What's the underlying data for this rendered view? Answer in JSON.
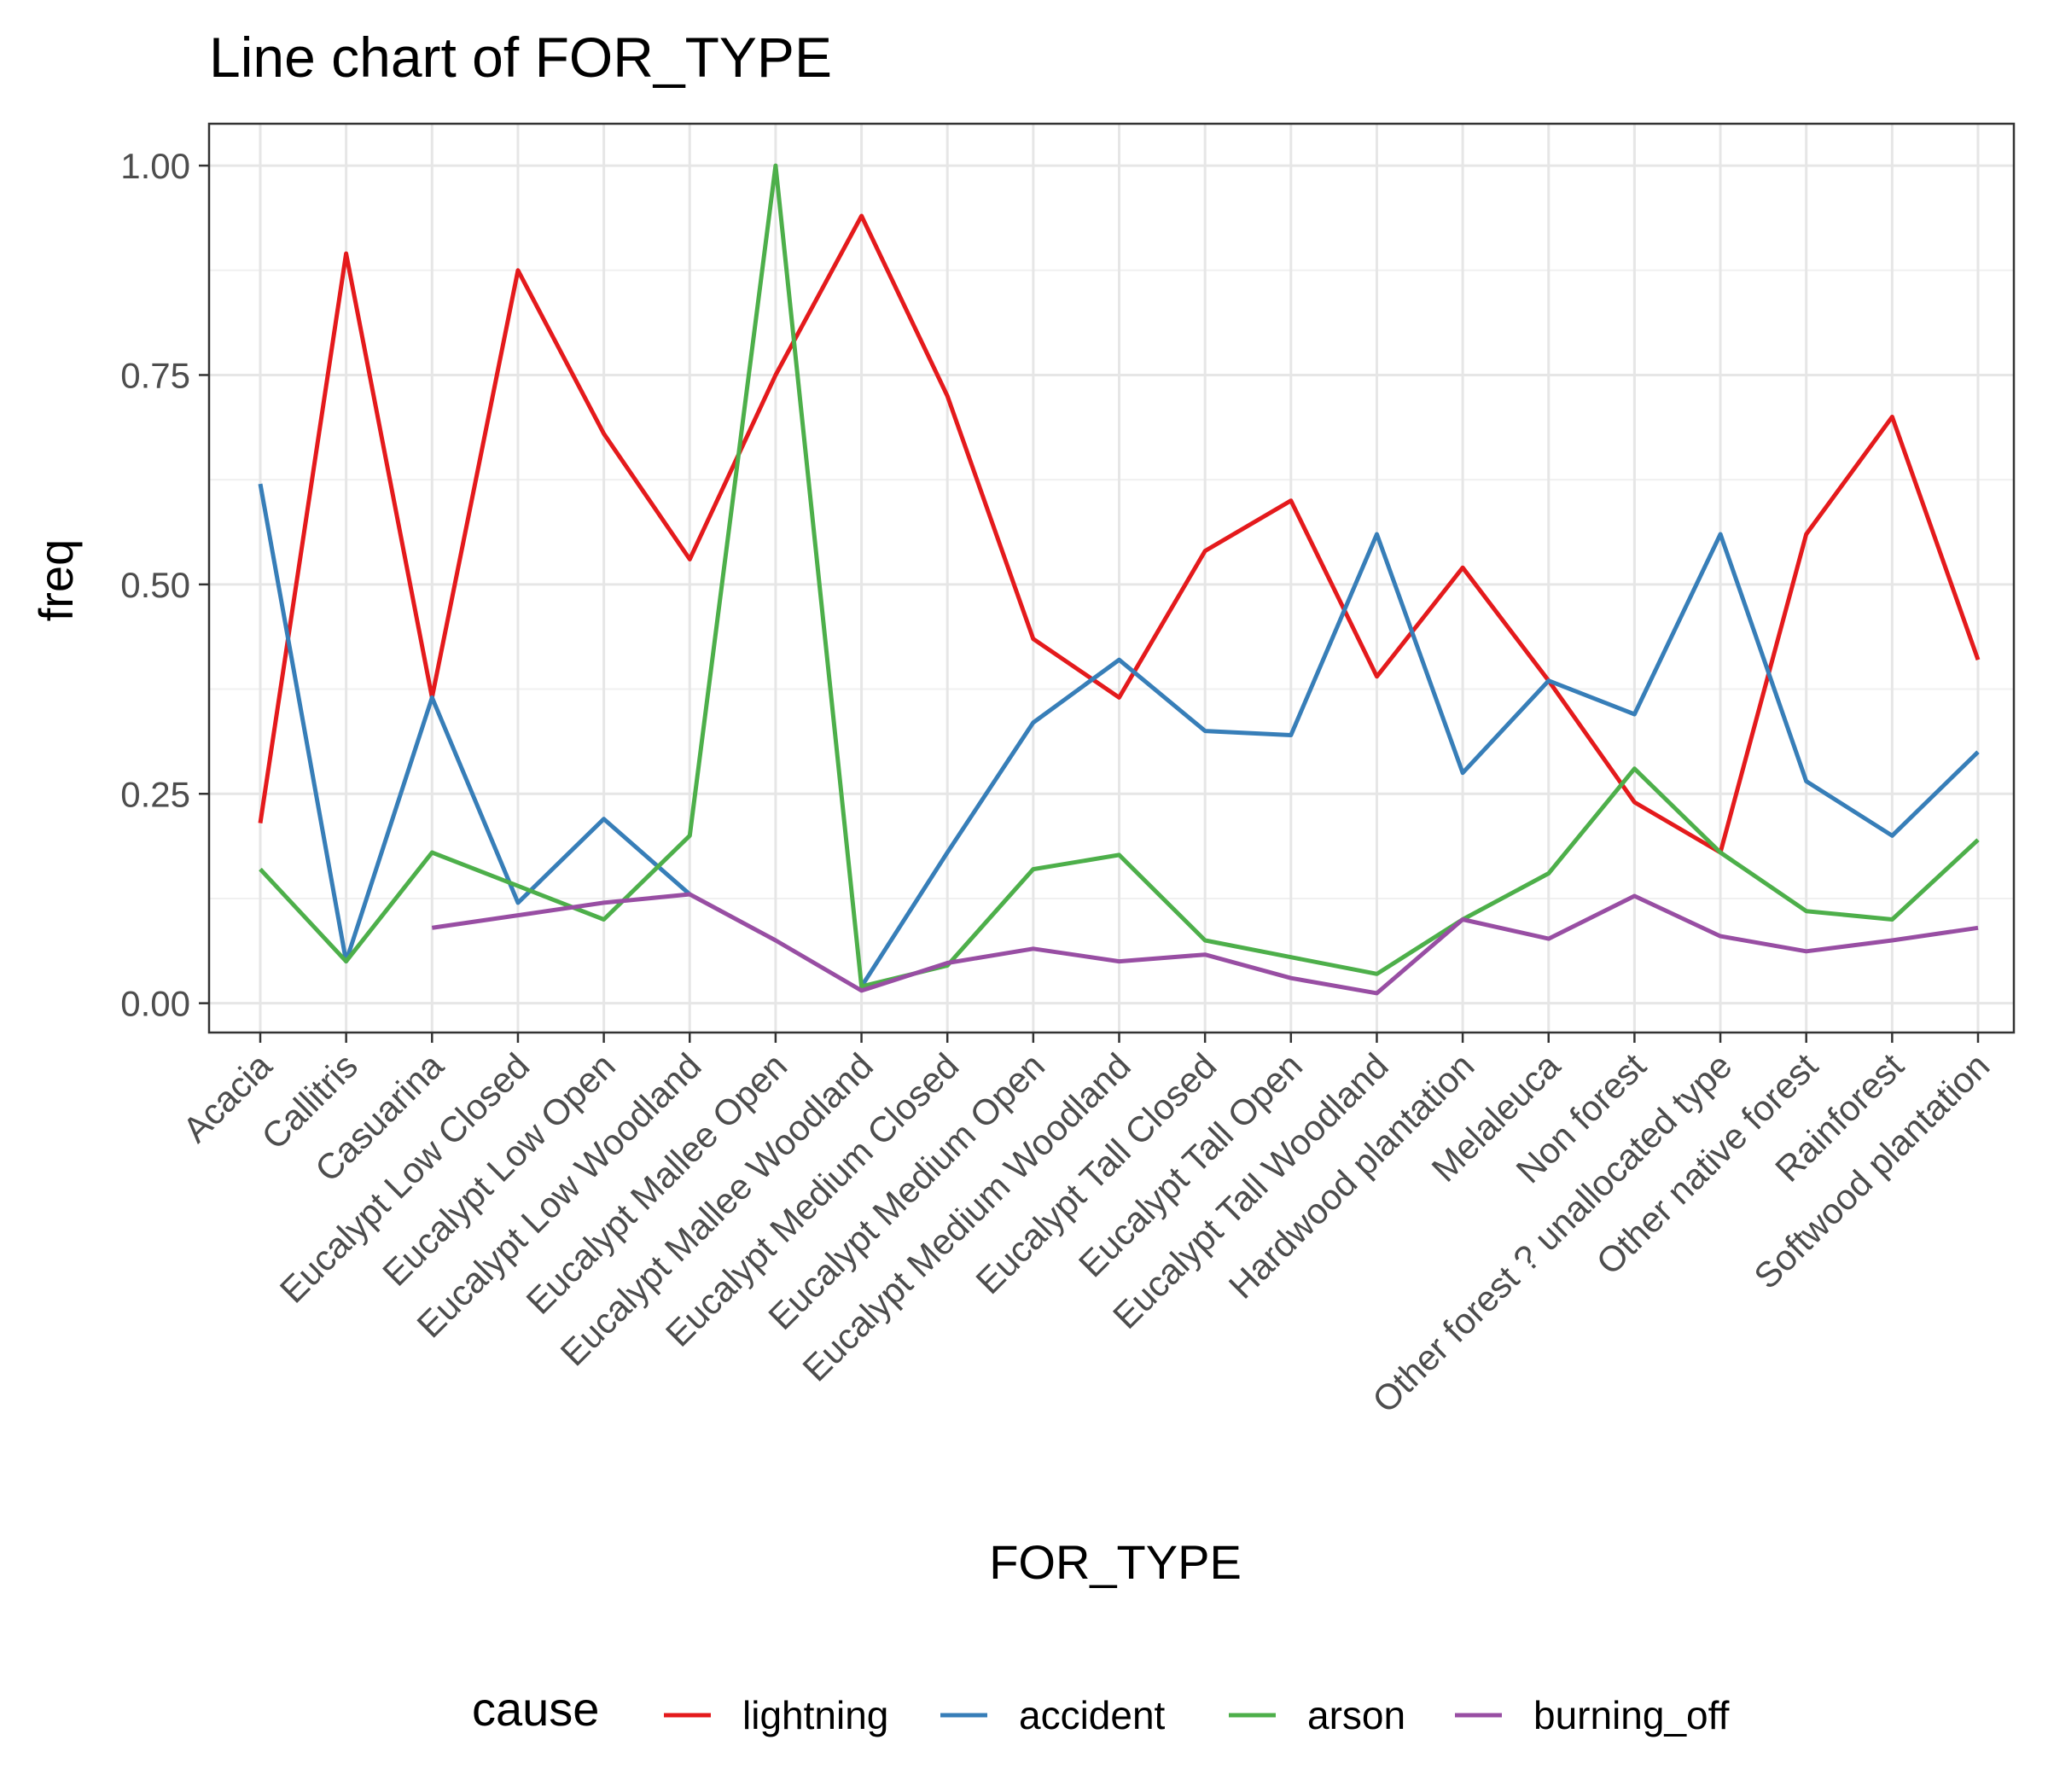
{
  "chart_data": {
    "type": "line",
    "title": "Line chart of FOR_TYPE",
    "xlabel": "FOR_TYPE",
    "ylabel": "freq",
    "ylim": [
      -0.035,
      1.05
    ],
    "yticks": [
      0,
      0.25,
      0.5,
      0.75,
      1
    ],
    "ytick_labels": [
      "0.00",
      "0.25",
      "0.50",
      "0.75",
      "1.00"
    ],
    "grid": true,
    "legend_title": "cause",
    "legend_position": "bottom",
    "categories": [
      "Acacia",
      "Callitris",
      "Casuarina",
      "Eucalypt Low Closed",
      "Eucalypt Low Open",
      "Eucalypt Low Woodland",
      "Eucalypt Mallee Open",
      "Eucalypt Mallee Woodland",
      "Eucalypt Medium Closed",
      "Eucalypt Medium Open",
      "Eucalypt Medium Woodland",
      "Eucalypt Tall Closed",
      "Eucalypt Tall Open",
      "Eucalypt Tall Woodland",
      "Hardwood plantation",
      "Melaleuca",
      "Non forest",
      "Other forest ? unallocated type",
      "Other native forest",
      "Rainforest",
      "Softwood plantation"
    ],
    "series": [
      {
        "name": "lightning",
        "color": "#E41A1C",
        "values": [
          0.215,
          0.895,
          0.365,
          0.875,
          0.68,
          0.53,
          0.75,
          0.94,
          0.725,
          0.435,
          0.365,
          0.54,
          0.6,
          0.39,
          0.52,
          0.385,
          0.24,
          0.18,
          0.56,
          0.7,
          0.41
        ]
      },
      {
        "name": "accident",
        "color": "#377EB8",
        "values": [
          0.62,
          0.05,
          0.365,
          0.12,
          0.22,
          0.13,
          null,
          0.02,
          0.18,
          0.335,
          0.41,
          0.325,
          0.32,
          0.56,
          0.275,
          0.385,
          0.345,
          0.56,
          0.265,
          0.2,
          0.3
        ]
      },
      {
        "name": "arson",
        "color": "#4DAF4A",
        "values": [
          0.16,
          0.05,
          0.18,
          0.14,
          0.1,
          0.2,
          1.0,
          0.02,
          0.045,
          0.16,
          0.177,
          0.075,
          0.055,
          0.035,
          0.1,
          0.155,
          0.28,
          0.18,
          0.11,
          0.1,
          0.195
        ]
      },
      {
        "name": "burning_off",
        "color": "#984EA3",
        "values": [
          null,
          null,
          0.09,
          0.105,
          0.12,
          0.13,
          0.075,
          0.015,
          0.048,
          0.065,
          0.05,
          0.058,
          0.03,
          0.012,
          0.1,
          0.077,
          0.128,
          0.08,
          0.062,
          0.075,
          0.09
        ]
      }
    ]
  }
}
